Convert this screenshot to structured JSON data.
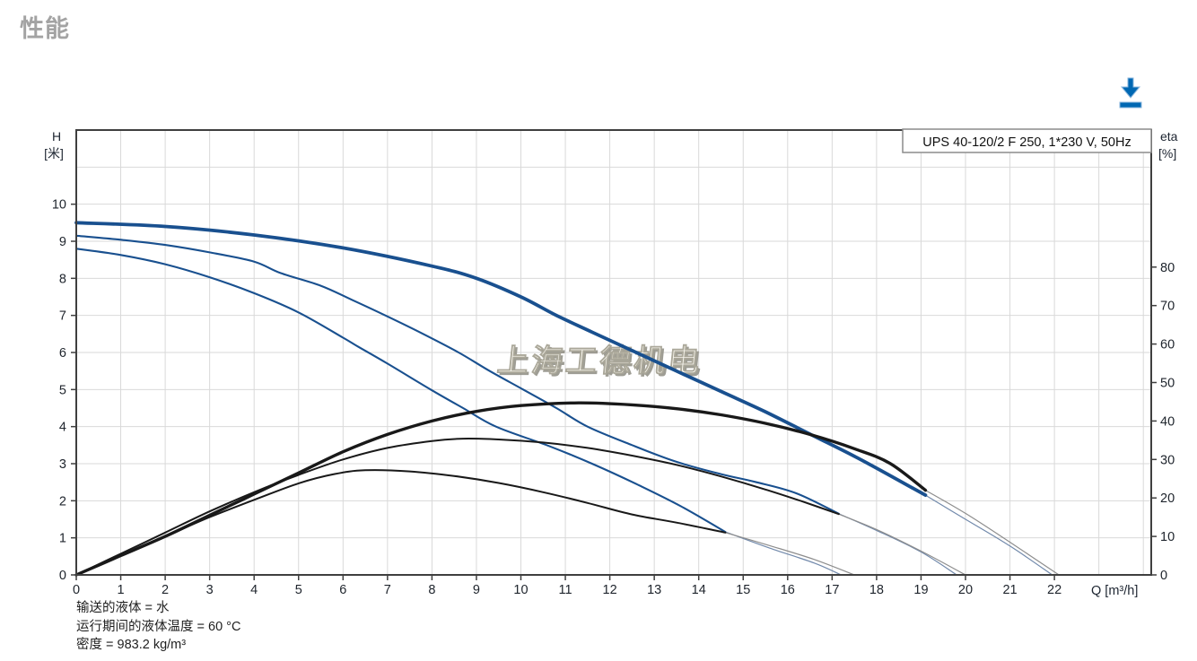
{
  "page": {
    "title": "性能"
  },
  "toolbar": {
    "download_tooltip": "download"
  },
  "footer": {
    "lines": [
      "输送的液体 = 水",
      "运行期间的液体温度 = 60 °C",
      "密度 = 983.2 kg/m³"
    ]
  },
  "chart_data": {
    "type": "line",
    "title_box": "UPS 40-120/2 F 250, 1*230 V, 50Hz",
    "watermark": "上海工德机电",
    "legend_position": "none",
    "grid": true,
    "axes": {
      "left": {
        "label_1": "H",
        "label_2": "[米]",
        "range": [
          0,
          12
        ],
        "ticks": [
          0,
          1,
          2,
          3,
          4,
          5,
          6,
          7,
          8,
          9,
          10
        ]
      },
      "bottom": {
        "label": "Q [m³/h]",
        "range": [
          0,
          24.2
        ],
        "ticks": [
          0,
          1,
          2,
          3,
          4,
          5,
          6,
          7,
          8,
          9,
          10,
          11,
          12,
          13,
          14,
          15,
          16,
          17,
          18,
          19,
          20,
          21,
          22
        ]
      },
      "right": {
        "label_1": "eta",
        "label_2": "[%]",
        "range": [
          0,
          80
        ],
        "ticks": [
          0,
          10,
          20,
          30,
          40,
          50,
          60,
          70,
          80
        ]
      }
    },
    "colors": {
      "head_curve": "#19508f",
      "eta_curve": "#191919",
      "head_ext": "#7189ab",
      "eta_ext": "#8d8d8d",
      "grid": "#d9d9d9",
      "axis": "#3f3f3f",
      "download_icon": "#0068b3",
      "watermark_fill": "#f8f6ee",
      "watermark_shadow": "#8e8c82"
    },
    "series": [
      {
        "id": "head-speed3",
        "kind": "head",
        "unit": "m",
        "style": "thick",
        "segment": "solid",
        "points": [
          [
            0,
            9.5
          ],
          [
            2,
            9.4
          ],
          [
            4,
            9.17
          ],
          [
            6,
            8.82
          ],
          [
            8,
            8.33
          ],
          [
            9,
            8.0
          ],
          [
            10,
            7.5
          ],
          [
            10.8,
            7.0
          ],
          [
            11.6,
            6.55
          ],
          [
            12.5,
            6.05
          ],
          [
            13.5,
            5.5
          ],
          [
            14.5,
            4.95
          ],
          [
            15.5,
            4.4
          ],
          [
            16.5,
            3.8
          ],
          [
            17.5,
            3.2
          ],
          [
            18.3,
            2.68
          ],
          [
            19.1,
            2.15
          ]
        ]
      },
      {
        "id": "head-speed3-ext",
        "kind": "head",
        "unit": "m",
        "style": "ext-head",
        "segment": "extension",
        "points": [
          [
            19.1,
            2.15
          ],
          [
            20,
            1.5
          ],
          [
            21,
            0.78
          ],
          [
            21.95,
            0
          ]
        ]
      },
      {
        "id": "head-speed2",
        "kind": "head",
        "unit": "m",
        "style": "normal",
        "segment": "solid",
        "points": [
          [
            0,
            9.15
          ],
          [
            1,
            9.04
          ],
          [
            2,
            8.9
          ],
          [
            3,
            8.7
          ],
          [
            4,
            8.45
          ],
          [
            4.6,
            8.14
          ],
          [
            5.5,
            7.8
          ],
          [
            6.2,
            7.42
          ],
          [
            6.95,
            7.0
          ],
          [
            7.8,
            6.5
          ],
          [
            8.6,
            6.0
          ],
          [
            9.3,
            5.5
          ],
          [
            10.05,
            5.0
          ],
          [
            10.8,
            4.5
          ],
          [
            11.5,
            4.0
          ],
          [
            12.5,
            3.5
          ],
          [
            13.5,
            3.05
          ],
          [
            14.5,
            2.72
          ],
          [
            15.3,
            2.5
          ],
          [
            16.2,
            2.2
          ],
          [
            17.15,
            1.65
          ]
        ]
      },
      {
        "id": "head-speed2-ext",
        "kind": "head",
        "unit": "m",
        "style": "ext-head",
        "segment": "extension",
        "points": [
          [
            17.15,
            1.65
          ],
          [
            18,
            1.2
          ],
          [
            19,
            0.62
          ],
          [
            19.8,
            0
          ]
        ]
      },
      {
        "id": "head-speed1",
        "kind": "head",
        "unit": "m",
        "style": "normal",
        "segment": "solid",
        "points": [
          [
            0,
            8.8
          ],
          [
            1,
            8.63
          ],
          [
            2,
            8.38
          ],
          [
            3,
            8.03
          ],
          [
            4,
            7.6
          ],
          [
            5,
            7.08
          ],
          [
            6,
            6.4
          ],
          [
            6.35,
            6.15
          ],
          [
            7,
            5.7
          ],
          [
            7.97,
            5.0
          ],
          [
            8.7,
            4.5
          ],
          [
            9.44,
            4.0
          ],
          [
            10.6,
            3.49
          ],
          [
            11.6,
            3.0
          ],
          [
            12.6,
            2.45
          ],
          [
            13.6,
            1.85
          ],
          [
            14.6,
            1.16
          ]
        ]
      },
      {
        "id": "head-speed1-ext",
        "kind": "head",
        "unit": "m",
        "style": "ext-head",
        "segment": "extension",
        "points": [
          [
            14.6,
            1.16
          ],
          [
            15.6,
            0.72
          ],
          [
            16.6,
            0.32
          ],
          [
            17.2,
            0
          ]
        ]
      },
      {
        "id": "eta-speed3",
        "kind": "eta",
        "unit": "%",
        "style": "thick-eta",
        "segment": "solid",
        "points": [
          [
            0,
            0
          ],
          [
            1,
            5
          ],
          [
            2,
            10
          ],
          [
            3,
            15.5
          ],
          [
            4,
            21
          ],
          [
            5,
            26.5
          ],
          [
            6,
            32
          ],
          [
            7,
            36.5
          ],
          [
            8,
            40
          ],
          [
            9,
            42.5
          ],
          [
            10,
            44
          ],
          [
            11.3,
            44.7
          ],
          [
            12.5,
            44.2
          ],
          [
            13.5,
            43.2
          ],
          [
            14.5,
            41.6
          ],
          [
            15.5,
            39.4
          ],
          [
            16.5,
            36.5
          ],
          [
            17.5,
            32.8
          ],
          [
            18.3,
            29.0
          ],
          [
            19.1,
            22
          ]
        ]
      },
      {
        "id": "eta-speed3-ext",
        "kind": "eta",
        "unit": "%",
        "style": "ext-eta",
        "segment": "extension",
        "points": [
          [
            19.1,
            22
          ],
          [
            20,
            16
          ],
          [
            21,
            8.5
          ],
          [
            22.1,
            0
          ]
        ]
      },
      {
        "id": "eta-speed2",
        "kind": "eta",
        "unit": "%",
        "style": "normal-eta",
        "segment": "solid",
        "points": [
          [
            0,
            0
          ],
          [
            1,
            5.5
          ],
          [
            2,
            11
          ],
          [
            3,
            16.5
          ],
          [
            4,
            21.5
          ],
          [
            5,
            26
          ],
          [
            6,
            30
          ],
          [
            7,
            33
          ],
          [
            8,
            34.8
          ],
          [
            8.7,
            35.4
          ],
          [
            9.5,
            35.2
          ],
          [
            10.5,
            34.4
          ],
          [
            11.5,
            33
          ],
          [
            12.5,
            31
          ],
          [
            13.5,
            28.6
          ],
          [
            14.5,
            25.6
          ],
          [
            15.5,
            22.2
          ],
          [
            16.3,
            19.2
          ],
          [
            17.15,
            15.8
          ]
        ]
      },
      {
        "id": "eta-speed2-ext",
        "kind": "eta",
        "unit": "%",
        "style": "ext-eta",
        "segment": "extension",
        "points": [
          [
            17.15,
            15.8
          ],
          [
            18,
            11.8
          ],
          [
            19,
            6.2
          ],
          [
            20,
            0
          ]
        ]
      },
      {
        "id": "eta-speed1",
        "kind": "eta",
        "unit": "%",
        "style": "normal-eta",
        "segment": "solid",
        "points": [
          [
            0,
            0
          ],
          [
            1,
            5
          ],
          [
            2,
            10
          ],
          [
            3,
            15
          ],
          [
            4,
            19.5
          ],
          [
            5,
            23.8
          ],
          [
            5.8,
            26.2
          ],
          [
            6.5,
            27.2
          ],
          [
            7.5,
            26.9
          ],
          [
            8.5,
            25.7
          ],
          [
            9.5,
            23.9
          ],
          [
            10.5,
            21.5
          ],
          [
            11.5,
            18.7
          ],
          [
            12.5,
            15.7
          ],
          [
            13.5,
            13.6
          ],
          [
            14.6,
            11
          ]
        ]
      },
      {
        "id": "eta-speed1-ext",
        "kind": "eta",
        "unit": "%",
        "style": "ext-eta",
        "segment": "extension",
        "points": [
          [
            14.6,
            11
          ],
          [
            15.6,
            7.6
          ],
          [
            16.6,
            4
          ],
          [
            17.5,
            0
          ]
        ]
      }
    ]
  }
}
